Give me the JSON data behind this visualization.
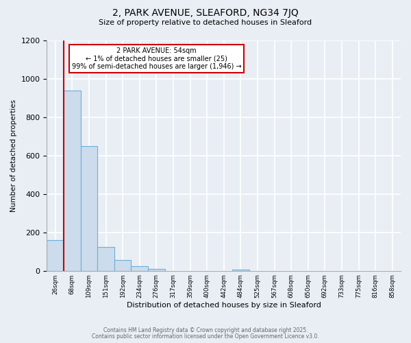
{
  "title": "2, PARK AVENUE, SLEAFORD, NG34 7JQ",
  "subtitle": "Size of property relative to detached houses in Sleaford",
  "xlabel": "Distribution of detached houses by size in Sleaford",
  "ylabel": "Number of detached properties",
  "bin_labels": [
    "26sqm",
    "68sqm",
    "109sqm",
    "151sqm",
    "192sqm",
    "234sqm",
    "276sqm",
    "317sqm",
    "359sqm",
    "400sqm",
    "442sqm",
    "484sqm",
    "525sqm",
    "567sqm",
    "608sqm",
    "650sqm",
    "692sqm",
    "733sqm",
    "775sqm",
    "816sqm",
    "858sqm"
  ],
  "bar_heights": [
    160,
    940,
    650,
    125,
    55,
    25,
    10,
    0,
    0,
    0,
    0,
    5,
    0,
    0,
    0,
    0,
    0,
    0,
    0,
    0,
    0
  ],
  "bar_color": "#ccdcec",
  "bar_edge_color": "#6baed6",
  "ylim": [
    0,
    1200
  ],
  "yticks": [
    0,
    200,
    400,
    600,
    800,
    1000,
    1200
  ],
  "property_line_x": 1.0,
  "annotation_title": "2 PARK AVENUE: 54sqm",
  "annotation_line1": "← 1% of detached houses are smaller (25)",
  "annotation_line2": "99% of semi-detached houses are larger (1,946) →",
  "annotation_box_color": "#ffffff",
  "annotation_box_edge_color": "#cc0000",
  "property_line_color": "#cc0000",
  "footer1": "Contains HM Land Registry data © Crown copyright and database right 2025.",
  "footer2": "Contains public sector information licensed under the Open Government Licence v3.0.",
  "background_color": "#e8eef4",
  "grid_color": "#ffffff"
}
